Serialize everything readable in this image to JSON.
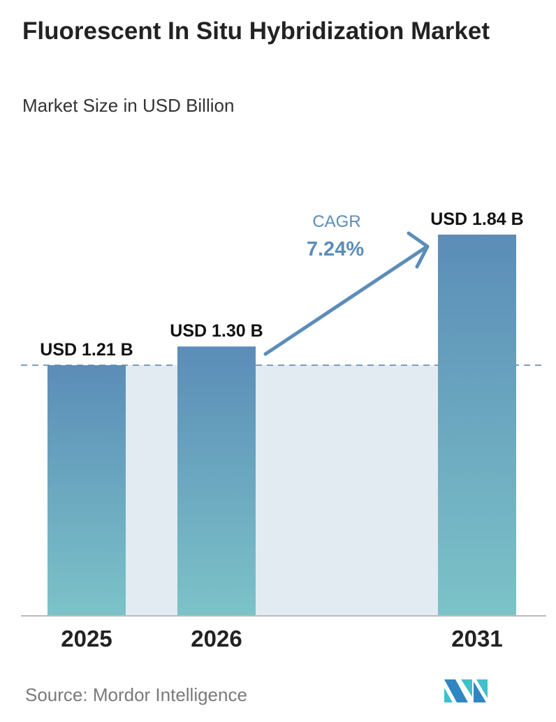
{
  "title": "Fluorescent In Situ Hybridization Market",
  "subtitle": "Market Size in USD Billion",
  "source": "Source:  Mordor Intelligence",
  "logo_text": "Mordor Intelligence",
  "chart_data": {
    "type": "bar",
    "categories": [
      "2025",
      "2026",
      "2031"
    ],
    "values": [
      1.21,
      1.3,
      1.84
    ],
    "data_labels": [
      "USD 1.21 B",
      "USD 1.30 B",
      "USD 1.84 B"
    ],
    "unit": "USD Billion",
    "ylim": [
      0,
      1.84
    ],
    "grid": false,
    "annotation": {
      "label": "CAGR",
      "value": "7.24%"
    },
    "colors": {
      "bar_top": "#5b8db8",
      "bar_bottom": "#7cc3c8",
      "annotation": "#5b8db8",
      "shade": "#e3ebf2"
    }
  }
}
